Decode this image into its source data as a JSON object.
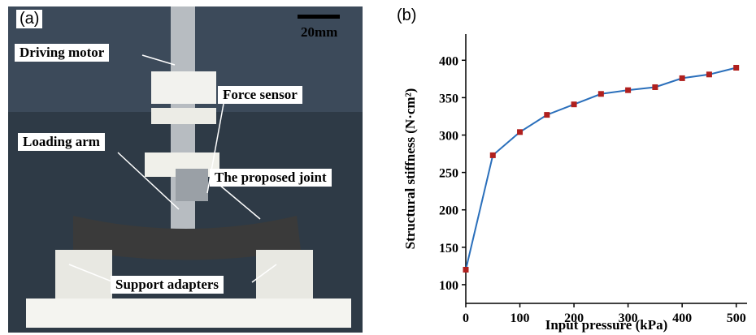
{
  "panel_a": {
    "label": "(a)",
    "scale_bar": "20mm",
    "annotations": [
      "Driving motor",
      "Force sensor",
      "Loading arm",
      "The proposed joint",
      "Support adapters"
    ]
  },
  "chart_data": {
    "type": "line",
    "panel_label": "(b)",
    "x_label": "Input pressure (kPa)",
    "y_label": "Structural stiffness (N·cm²)",
    "x": [
      0,
      50,
      100,
      150,
      200,
      250,
      300,
      350,
      400,
      450,
      500
    ],
    "series": [
      {
        "color": "#2a6fbb",
        "marker_color": "#b0201e",
        "values": [
          120,
          273,
          304,
          327,
          341,
          355,
          360,
          364,
          376,
          381,
          390
        ]
      }
    ],
    "xlim": [
      0,
      520
    ],
    "xticks": [
      0,
      100,
      200,
      300,
      400,
      500
    ],
    "ylim": [
      75,
      435
    ],
    "yticks": [
      100,
      150,
      200,
      250,
      300,
      350,
      400
    ]
  }
}
